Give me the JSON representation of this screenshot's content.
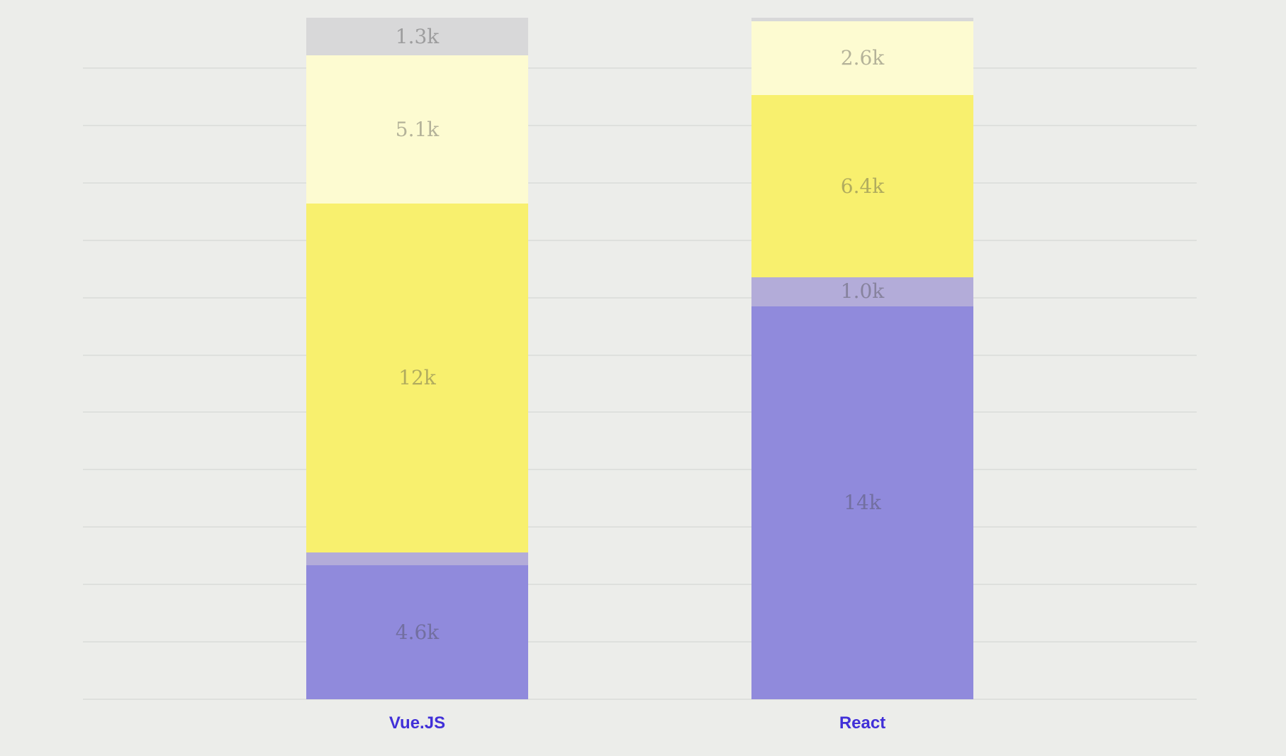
{
  "page": {
    "background_color": "#ecedea"
  },
  "chart_data": {
    "type": "bar",
    "variant": "stacked-vertical",
    "stack_order": "first-series-at-bottom",
    "title": "",
    "xlabel": "",
    "ylabel": "",
    "legend": "none",
    "grid": "horizontal",
    "gridline_color": "#dee0dd",
    "gridline_value_step": 2000,
    "y_axis_tick_labels": "none",
    "category_label_color": "#4130d8",
    "value_label_color": "rgba(70,70,70,0.40)",
    "categories": [
      "Vue.JS",
      "React"
    ],
    "series": [
      {
        "name": "purple-segment",
        "color": "#908adc",
        "values": [
          4600,
          13800
        ],
        "labels": [
          "4.6k",
          "14k"
        ]
      },
      {
        "name": "lavender-segment",
        "color": "#b3acd9",
        "values": [
          440,
          1000
        ],
        "labels": [
          "",
          "1.0k"
        ]
      },
      {
        "name": "yellow-segment",
        "color": "#f8f06e",
        "values": [
          12000,
          6400
        ],
        "labels": [
          "12k",
          "6.4k"
        ]
      },
      {
        "name": "pale-yellow-segment",
        "color": "#fdfbd1",
        "values": [
          5100,
          2600
        ],
        "labels": [
          "5.1k",
          "2.6k"
        ]
      },
      {
        "name": "gray-segment",
        "color": "#d8d8d9",
        "values": [
          1300,
          120
        ],
        "labels": [
          "1.3k",
          ""
        ]
      }
    ]
  }
}
